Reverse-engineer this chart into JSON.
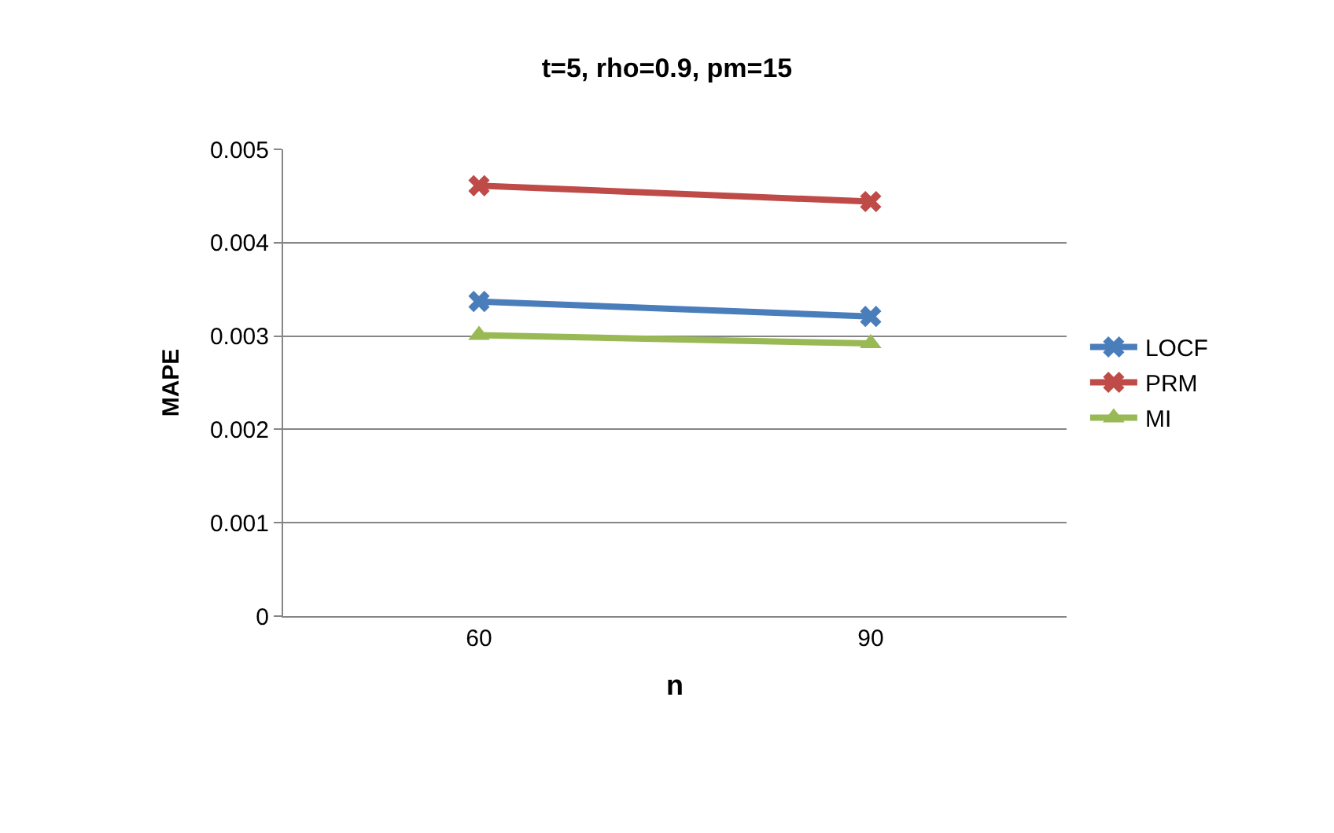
{
  "chart_data": {
    "type": "line",
    "title": "t=5, rho=0.9, pm=15",
    "xlabel": "n",
    "ylabel": "MAPE",
    "categories": [
      "60",
      "90"
    ],
    "series": [
      {
        "name": "LOCF",
        "color": "#4a7ebb",
        "marker": "cross",
        "values": [
          0.00337,
          0.00321
        ]
      },
      {
        "name": "PRM",
        "color": "#be4b48",
        "marker": "cross",
        "values": [
          0.00461,
          0.00444
        ]
      },
      {
        "name": "MI",
        "color": "#98b954",
        "marker": "triangle",
        "values": [
          0.00301,
          0.00292
        ]
      }
    ],
    "ylim": [
      0,
      0.005
    ],
    "yticks": [
      0,
      0.001,
      0.002,
      0.003,
      0.004,
      0.005
    ],
    "grid": "y",
    "legend": "right"
  }
}
